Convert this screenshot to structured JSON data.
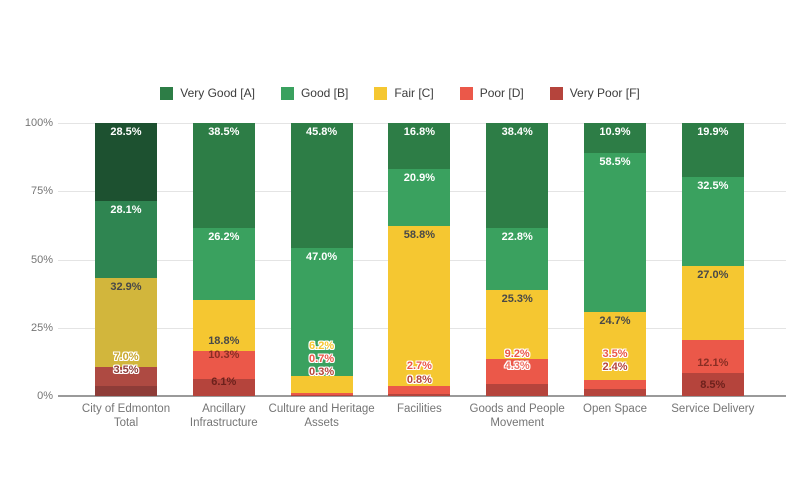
{
  "chart_data": {
    "type": "bar",
    "stacked": true,
    "orientation": "vertical",
    "title": "",
    "xlabel": "",
    "ylabel": "",
    "ylim": [
      0,
      100
    ],
    "grid": true,
    "legend_position": "top",
    "annotation_format": "{value}%",
    "y_ticks": [
      "0%",
      "25%",
      "50%",
      "75%",
      "100%"
    ],
    "categories": [
      "City of Edmonton Total",
      "Ancillary Infrastructure",
      "Culture and Heritage Assets",
      "Facilities",
      "Goods and People Movement",
      "Open Space",
      "Service Delivery"
    ],
    "series": [
      {
        "name": "Very Good [A]",
        "color": "#2d7d46",
        "values": [
          28.5,
          38.5,
          45.8,
          16.8,
          38.4,
          10.9,
          19.9
        ],
        "labels": [
          "28.5%",
          "38.5%",
          "45.8%",
          "16.8%",
          "38.4%",
          "10.9%",
          "19.9%"
        ]
      },
      {
        "name": "Good [B]",
        "color": "#3aa15f",
        "values": [
          28.1,
          26.2,
          47.0,
          20.9,
          22.8,
          58.5,
          32.5
        ],
        "labels": [
          "28.1%",
          "26.2%",
          "47.0%",
          "20.9%",
          "22.8%",
          "58.5%",
          "32.5%"
        ]
      },
      {
        "name": "Fair [C]",
        "color": "#f5c731",
        "values": [
          32.9,
          18.8,
          6.2,
          58.8,
          25.3,
          24.7,
          27.0
        ],
        "labels": [
          "32.9%",
          "18.8%",
          "6.2%",
          "58.8%",
          "25.3%",
          "24.7%",
          "27.0%"
        ]
      },
      {
        "name": "Poor [D]",
        "color": "#eb5849",
        "values": [
          7.0,
          10.3,
          0.7,
          2.7,
          9.2,
          3.5,
          12.1
        ],
        "labels": [
          "7.0%",
          "10.3%",
          "0.7%",
          "2.7%",
          "9.2%",
          "3.5%",
          "12.1%"
        ]
      },
      {
        "name": "Very Poor [F]",
        "color": "#b5443c",
        "values": [
          3.5,
          6.1,
          0.3,
          0.8,
          4.3,
          2.4,
          8.5
        ],
        "labels": [
          "3.5%",
          "6.1%",
          "0.3%",
          "0.8%",
          "4.3%",
          "2.4%",
          "8.5%"
        ]
      }
    ],
    "highlight_column": {
      "index": 0,
      "note": "Total column drawn in darker shades",
      "colors": [
        "#1d5130",
        "#2f8551",
        "#d2b63c",
        "#ae4a42",
        "#8e3c38"
      ]
    }
  }
}
